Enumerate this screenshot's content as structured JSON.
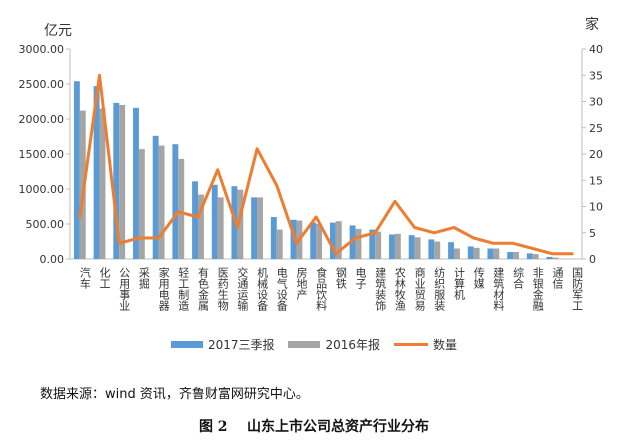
{
  "units": {
    "left": "亿元",
    "right": "家"
  },
  "source_text": "数据来源：wind 资讯，齐鲁财富网研究中心。",
  "caption": "图 2    山东上市公司总资产行业分布",
  "colors": {
    "bar2017": "#5b9bd5",
    "bar2016": "#a5a5a5",
    "line": "#ed7d31",
    "axis": "#bfbfbf"
  },
  "chart_data": {
    "type": "bar",
    "categories": [
      "汽车",
      "化工",
      "公用事业",
      "采掘",
      "家用电器",
      "轻工制造",
      "有色金属",
      "医药生物",
      "交通运输",
      "机械设备",
      "电气设备",
      "房地产",
      "食品饮料",
      "钢铁",
      "电子",
      "建筑装饰",
      "农林牧渔",
      "商业贸易",
      "纺织服装",
      "计算机",
      "传媒",
      "建筑材料",
      "综合",
      "非银金融",
      "通信",
      "国防军工"
    ],
    "series": [
      {
        "name": "2017三季报",
        "type": "bar",
        "axis": "left",
        "values": [
          2540,
          2470,
          2230,
          2160,
          1760,
          1640,
          1110,
          1060,
          1040,
          880,
          600,
          560,
          520,
          520,
          480,
          420,
          350,
          340,
          280,
          240,
          180,
          150,
          100,
          80,
          30,
          0
        ]
      },
      {
        "name": "2016年报",
        "type": "bar",
        "axis": "left",
        "values": [
          2120,
          2150,
          2200,
          1570,
          1620,
          1430,
          920,
          880,
          990,
          880,
          420,
          550,
          500,
          540,
          430,
          390,
          360,
          310,
          250,
          150,
          160,
          150,
          100,
          70,
          20,
          0
        ]
      },
      {
        "name": "数量",
        "type": "line",
        "axis": "right",
        "values": [
          8,
          35,
          3,
          4,
          4,
          9,
          8,
          17,
          6,
          21,
          14,
          3,
          8,
          1,
          4,
          5,
          11,
          6,
          5,
          6,
          4,
          3,
          3,
          2,
          1,
          1
        ]
      }
    ],
    "ylim_left": [
      0,
      3000
    ],
    "yticks_left": [
      "0.00",
      "500.00",
      "1000.00",
      "1500.00",
      "2000.00",
      "2500.00",
      "3000.00"
    ],
    "ylim_right": [
      0,
      40
    ],
    "yticks_right": [
      "0",
      "5",
      "10",
      "15",
      "20",
      "25",
      "30",
      "35",
      "40"
    ],
    "legend": {
      "placement": "bottom",
      "entries": [
        "2017三季报",
        "2016年报",
        "数量"
      ]
    },
    "grid": false
  }
}
